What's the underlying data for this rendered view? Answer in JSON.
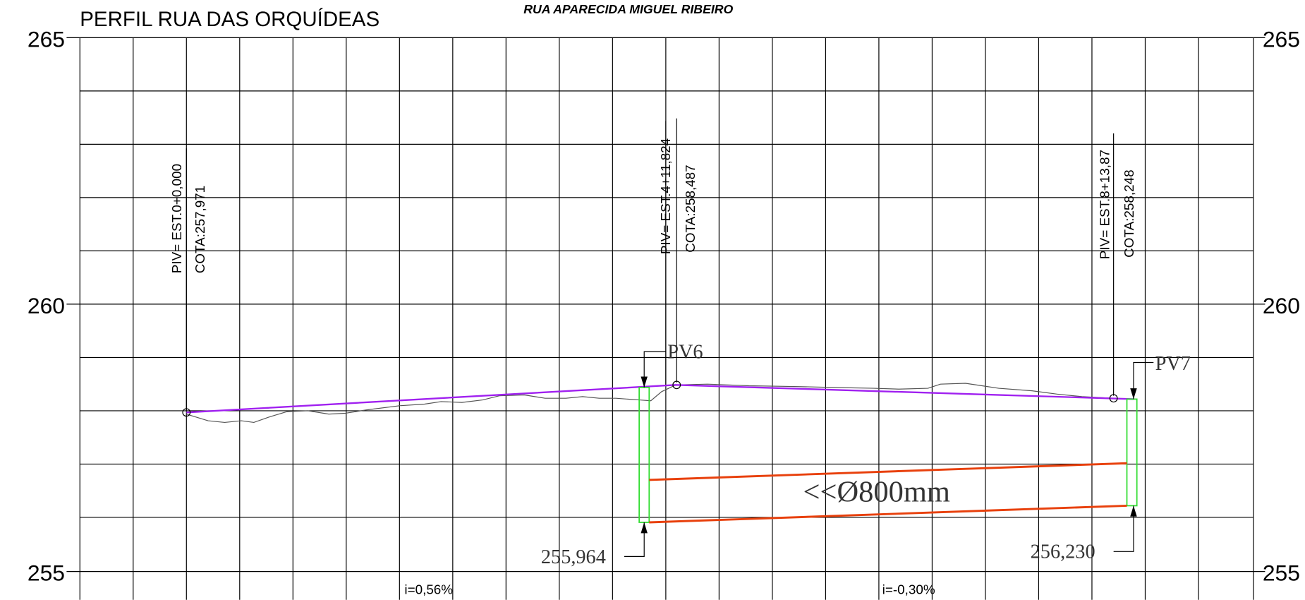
{
  "header": {
    "title": "PERFIL RUA DAS ORQUÍDEAS",
    "subtitle": "RUA APARECIDA MIGUEL RIBEIRO"
  },
  "axis_labels": [
    "265",
    "260",
    "255"
  ],
  "piv": [
    {
      "station": "PIV= EST.0+0,000",
      "elevation": "COTA:257,971"
    },
    {
      "station": "PIV= EST.4+11,824",
      "elevation": "COTA:258,487"
    },
    {
      "station": "PIV= EST.8+13,87",
      "elevation": "COTA:258,248"
    }
  ],
  "manholes": [
    {
      "label": "PV6",
      "invert": "255,964"
    },
    {
      "label": "PV7",
      "invert": "256,230"
    }
  ],
  "pipe": "<<Ø800mm",
  "slopes": [
    "i=0,56%",
    "i=-0,30%"
  ]
}
